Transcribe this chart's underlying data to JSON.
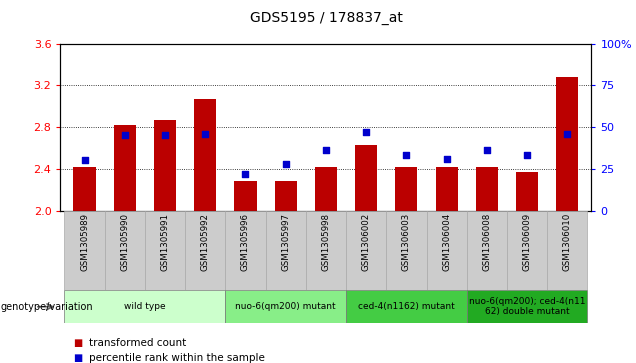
{
  "title": "GDS5195 / 178837_at",
  "samples": [
    "GSM1305989",
    "GSM1305990",
    "GSM1305991",
    "GSM1305992",
    "GSM1305996",
    "GSM1305997",
    "GSM1305998",
    "GSM1306002",
    "GSM1306003",
    "GSM1306004",
    "GSM1306008",
    "GSM1306009",
    "GSM1306010"
  ],
  "bar_values": [
    2.42,
    2.82,
    2.87,
    3.07,
    2.28,
    2.28,
    2.42,
    2.63,
    2.42,
    2.42,
    2.42,
    2.37,
    3.28
  ],
  "percentile_values": [
    30,
    45,
    45,
    46,
    22,
    28,
    36,
    47,
    33,
    31,
    36,
    33,
    46
  ],
  "bar_base": 2.0,
  "ylim_left": [
    2.0,
    3.6
  ],
  "ylim_right": [
    0,
    100
  ],
  "yticks_left": [
    2.0,
    2.4,
    2.8,
    3.2,
    3.6
  ],
  "yticks_right": [
    0,
    25,
    50,
    75,
    100
  ],
  "bar_color": "#bb0000",
  "percentile_color": "#0000cc",
  "genotype_groups": [
    {
      "label": "wild type",
      "start": 0,
      "end": 3,
      "color": "#ccffcc"
    },
    {
      "label": "nuo-6(qm200) mutant",
      "start": 4,
      "end": 6,
      "color": "#88ee88"
    },
    {
      "label": "ced-4(n1162) mutant",
      "start": 7,
      "end": 9,
      "color": "#44cc44"
    },
    {
      "label": "nuo-6(qm200); ced-4(n11\n62) double mutant",
      "start": 10,
      "end": 12,
      "color": "#22aa22"
    }
  ],
  "legend_transformed": "transformed count",
  "legend_percentile": "percentile rank within the sample",
  "tick_bg_color": "#cccccc",
  "tick_edge_color": "#aaaaaa"
}
